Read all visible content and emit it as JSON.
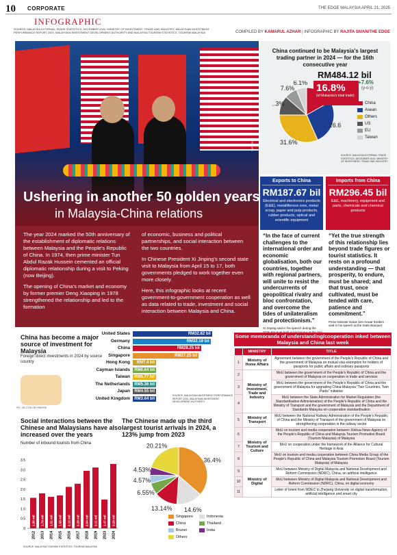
{
  "header": {
    "page": "10",
    "section": "CORPORATE",
    "publication": "THE EDGE MALAYSIA  APRIL 21, 2025",
    "infographic": "INFOGRAPHIC",
    "sources": "SOURCE: MALAYSIA EXTERNAL TRADE STATISTICS, DECEMBER 2024, MINISTRY OF INVESTMENT, TRADE AND INDUSTRY, MALAYSIAN INVESTMENT PERFORMANCE REPORT 2024, MALAYSIAN INVESTMENT DEVELOPMENT AUTHORITY AND MALAYSIA TOURISM STATISTICS, TOURISM MALAYSIA",
    "compiled_by": "COMPILED BY",
    "compiler": "KAMARUL AZHAR",
    "infographic_by": "| INFOGRAPHIC BY",
    "designer": "RAJITA SIVAN/THE EDGE"
  },
  "hero": {
    "title_line1": "Ushering in another 50 golden years",
    "title_line2": "in Malaysia-China relations",
    "photo_credit": "Bernama"
  },
  "story": {
    "p1": "The year 2024 marked the 50th anniversary of the establishment of diplomatic relations between Malaysia and the People's Republic of China. In 1974, then prime minister Tun Abdul Razak Hussein cemented an official diplomatic relationship during a visit to Peking (now Beijing).",
    "p2": "The opening of China's market and economy by former premier Deng Xiaoping in 1978 strengthened the relationship and led to the formation",
    "p3": "of economic, business and political partnerships, and social interaction between the two countries.",
    "p4": "In Chinese President Xi Jinping's second state visit to Malaysia from April 15 to 17, both governments pledged to work together even more closely.",
    "p5": "Here, this infographic looks at recent government-to-government cooperation as well as data related to trade, investment and social interaction between Malaysia and China."
  },
  "trade": {
    "title": "China continued to be Malaysia's largest trading partner in 2024 — for the 16th consecutive year",
    "value": "RM484.12 bil",
    "growth": "+7.6%",
    "growth_label": "(y-o-y)",
    "share": "16.8%",
    "share_label": "(of Malaysia's total trade)",
    "source": "SOURCE: MALAYSIA EXTERNAL TRADE STATISTICS, DECEMBER 2024, MINISTRY OF INVESTMENT, TRADE AND INDUSTRY"
  },
  "exports": {
    "title": "Exports to China",
    "value": "RM187.67 bil",
    "desc": "Electrical and electronics products (E&E), metalliferous ores, metal scrap, paper and pulp products, rubber products, optical and scientific equipment"
  },
  "imports": {
    "title": "Imports from China",
    "value": "RM296.45 bil",
    "desc": "E&E, machinery, equipment and parts, chemicals and chemical products"
  },
  "quote1": {
    "text": "“In the face of current challenges to the international order and economic globalisation, both our countries, together with regional partners, will unite to resist the undercurrents of geopolitical rivalry and bloc confrontation, and overcome the tides of unilateralism and protectionism.”",
    "attr": "Xi Jinping said in his speech during the State Banquet held in his honour at the Seri Perdana Complex in Putrajaya"
  },
  "quote2": {
    "text": "“Yet the true strength of this relationship lies beyond trade figures or tourist statistics. It rests on a profound understanding — that prosperity, to endure, must be shared; and that trust, once cultivated, must be tended with care, patience and commitment.”",
    "attr": "Prime Minister Datuk Seri Anwar Ibrahim said in his speech at the State Banquet"
  },
  "investment": {
    "title": "China has become a major source of investment for Malaysia",
    "subtitle": "Foreign direct investments in 2024 by source country",
    "photo_credit": "PIX: VECTOR OR FREEPIK",
    "source": "SOURCE: MALAYSIAN INVESTMENT PERFORMANCE REPORT 2024, MALAYSIAN INVESTMENT DEVELOPMENT AUTHORITY"
  },
  "social": {
    "title": "Social interactions between the Chinese and Malaysians have also increased over the years",
    "subtitle": "Number of inbound tourists from China",
    "source": "SOURCE: MALAYSIA TOURISM STATISTICS, TOURISM MALAYSIA"
  },
  "rank": {
    "title": "The Chinese made up the third largest tourist arrivals in 2024, a 123% jump from 2023"
  },
  "mou": {
    "title": "Some memoranda of understanding/cooperation inked between Malaysia and China last week",
    "col_ministry": "MINISTRY",
    "col_title": "TITLE",
    "rows": [
      {
        "n": "1",
        "ministry": "Ministry of Home Affairs",
        "title": "Agreement between the government of the People's Republic of China and the government of Malaysia on mutual visa exemption for holders of passports for public affairs and ordinary passports"
      },
      {
        "n": "2",
        "ministry": "Ministry of Investment, Trade and Industry",
        "title": "MoU between the government of the People's Republic of China and the government of Malaysia on cooperation in trade and services"
      },
      {
        "n": "3",
        "ministry": "",
        "title": "MoU between the government of the People's Republic of China and the government of Malaysia for upgrading China-Malaysia \"Two Countries, Twin Parks\" initiative"
      },
      {
        "n": "4",
        "ministry": "",
        "title": "MoU between the State Administration for Market Regulation (the Standardisation Administration) of the People's Republic of China and the Ministry of Transport and the government of Malaysia and the Department of Standards Malaysia on cooperation standardisation"
      },
      {
        "n": "5",
        "ministry": "Ministry of Transport",
        "title": "MoU between the National Railway Administration of the People's Republic of China and the Ministry of Transport of the government of Malaysia on strengthening cooperation in the railway sector"
      },
      {
        "n": "6",
        "ministry": "Ministry of Tourism and Culture",
        "title": "MoU on tourism and media cooperation between Xinhua News Agency of the People's Republic of China and Malaysia Tourism Promotion Board (Tourism Malaysia) of Malaysia"
      },
      {
        "n": "7",
        "ministry": "",
        "title": "MoU on cooperation under the framework of the Alliance for Cultural Heritage in Asia"
      },
      {
        "n": "8",
        "ministry": "",
        "title": "MoU on tourism and media cooperation between China Media Group of the People's Republic of China and Malaysia Tourism Promotion Board (Tourism Malaysia) of Malaysia"
      },
      {
        "n": "9",
        "ministry": "Ministry of Digital",
        "title": "MoU between Ministry of Digital Malaysia and National Development and Reform Commission (NDRC), China, on artificial intelligence"
      },
      {
        "n": "10",
        "ministry": "",
        "title": "MoU between Ministry of Digital Malaysia and National Development and Reform Commission (NDRC), China, on digital economy"
      },
      {
        "n": "11",
        "ministry": "",
        "title": "Letter of Intent from MDEC to Zhejiang University on digital transformation, artificial intelligence and smart city"
      }
    ]
  },
  "chart_data": [
    {
      "type": "pie",
      "title": "China continued to be Malaysia's largest trading partner in 2024 — for the 16th consecutive year",
      "labels": [
        "China",
        "Asean",
        "Others",
        "US",
        "EU",
        "Taiwan"
      ],
      "values": [
        16.8,
        26.6,
        31.6,
        11.3,
        7.6,
        6.1
      ],
      "display_labels": [
        "16.8%",
        "26.6%",
        "31.6%",
        "11.3%",
        "7.6%",
        "6.1%"
      ],
      "colors": [
        "#c8102e",
        "#1c3f94",
        "#e8b31a",
        "#555555",
        "#999999",
        "#d4d4d4"
      ]
    },
    {
      "type": "bar",
      "title": "China has become a major source of investment for Malaysia",
      "orientation": "horizontal",
      "categories": [
        "United States",
        "Germany",
        "China",
        "Singapore",
        "Hong Kong",
        "Cayman Islands",
        "Taiwan",
        "The Netherlands",
        "Japan",
        "United Kingdom"
      ],
      "values": [
        32.82,
        32.19,
        28.25,
        27.25,
        7.4,
        6.64,
        5.77,
        5.36,
        4.55,
        3.64
      ],
      "data_labels": [
        "RM32.82 bil",
        "RM32.19 bil",
        "RM28.25 bil",
        "RM27.25 bil",
        "RM7.4 bil",
        "RM6.64 bil",
        "RM5.77 bil",
        "RM5.36 bil",
        "RM4.55 bil",
        "RM3.64 bil"
      ],
      "colors": [
        "#1c3f94",
        "#1a82c4",
        "#c8102e",
        "#e8902a",
        "#c9a227",
        "#76a84a",
        "#e8b31a",
        "#2a8f8a",
        "#555555",
        "#1c3f94"
      ]
    },
    {
      "type": "bar",
      "title": "Social interactions between the Chinese and Malaysians have also increased over the years",
      "ylabel": "mil",
      "categories": [
        "2012",
        "2013",
        "2014",
        "2015",
        "2016",
        "2017",
        "2018",
        "2019",
        "2023",
        "2024"
      ],
      "values": [
        1.56,
        1.79,
        1.61,
        1.68,
        2.12,
        2.28,
        2.94,
        3.11,
        1.47,
        3.29
      ],
      "data_labels": [
        "1.56 mil",
        "1.79 mil",
        "1.61 mil",
        "1.68 mil",
        "2.12 mil",
        "2.28 mil",
        "2.94 mil",
        "3.11 mil",
        "1.47 mil",
        "3.29 mil"
      ],
      "ylim": [
        0,
        3.5
      ],
      "yticks": [
        "0",
        "0.5",
        "1.0",
        "1.5",
        "2.0",
        "2.5",
        "3.0",
        "3.5"
      ]
    },
    {
      "type": "pie",
      "title": "The Chinese made up the third largest tourist arrivals in 2024, a 123% jump from 2023",
      "labels": [
        "Singapore",
        "Indonesia",
        "China",
        "Thailand",
        "Brunei",
        "India",
        "Others"
      ],
      "values": [
        36.4,
        14.6,
        13.14,
        6.55,
        4.57,
        4.53,
        20.21
      ],
      "display_labels": [
        "36.4%",
        "14.6%",
        "13.14%",
        "6.55%",
        "4.57%",
        "4.53%",
        "20.21%"
      ],
      "colors": [
        "#e8902a",
        "#e0e0e0",
        "#c8102e",
        "#76a84a",
        "#a8c8e8",
        "#7a2a8a",
        "#e8d73a"
      ]
    }
  ]
}
